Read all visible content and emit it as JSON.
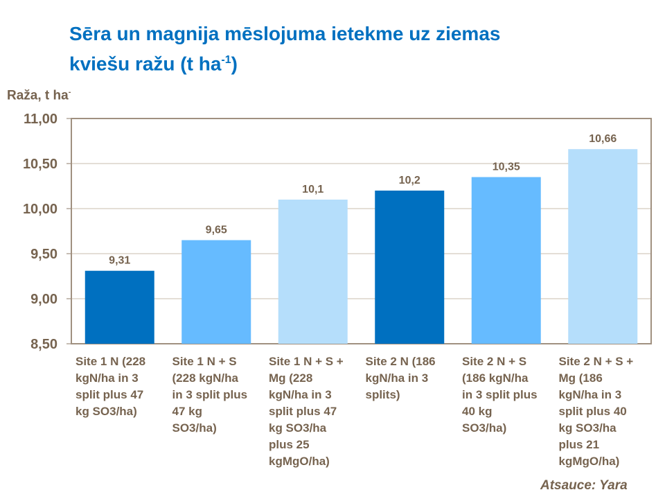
{
  "title": {
    "line1": "Sēra un magnija mēslojuma ietekme uz ziemas",
    "line2": "kviešu ražu (t ha",
    "sup": "-1",
    "close": ")"
  },
  "source": "Atsauce: Yara",
  "chart_data": {
    "type": "bar",
    "title": "Sēra un magnija mēslojuma ietekme uz ziemas kviešu ražu (t ha-1)",
    "ylabel": "Raža, t ha",
    "ylabel_sup": "-",
    "xlabel": "",
    "ylim": [
      8.5,
      11.0
    ],
    "yticks": [
      "8,50",
      "9,00",
      "9,50",
      "10,00",
      "10,50",
      "11,00"
    ],
    "grid": true,
    "categories": [
      [
        "Site 1 N (228",
        "kgN/ha in 3",
        "split plus 47",
        "kg SO3/ha)"
      ],
      [
        "Site 1 N + S",
        "(228 kgN/ha",
        "in 3 split plus",
        "47 kg",
        "SO3/ha)"
      ],
      [
        "Site 1 N + S +",
        "Mg (228",
        "kgN/ha in 3",
        "split plus 47",
        "kg SO3/ha",
        "plus 25",
        "kgMgO/ha)"
      ],
      [
        "Site 2 N (186",
        "kgN/ha in 3",
        "splits)"
      ],
      [
        "Site 2 N + S",
        "(186 kgN/ha",
        "in 3 split plus",
        "40 kg",
        "SO3/ha)"
      ],
      [
        "Site 2 N + S +",
        "Mg (186",
        "kgN/ha in 3",
        "split plus 40",
        "kg SO3/ha",
        "plus 21",
        "kgMgO/ha)"
      ]
    ],
    "values": [
      9.31,
      9.65,
      10.1,
      10.2,
      10.35,
      10.66
    ],
    "data_labels": [
      "9,31",
      "9,65",
      "10,1",
      "10,2",
      "10,35",
      "10,66"
    ],
    "colors": [
      "#0070C0",
      "#66BBFF",
      "#B5DEFB",
      "#0070C0",
      "#66BBFF",
      "#B5DEFB"
    ]
  }
}
